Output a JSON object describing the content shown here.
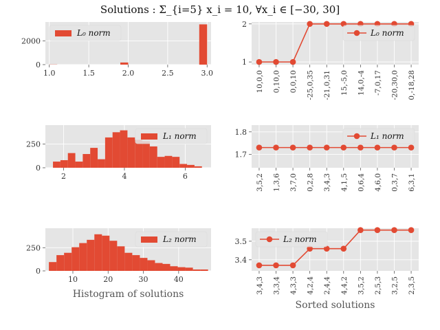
{
  "title": "Solutions : Σ_{i=5} x_i = 10,    ∀x_i ∈ [−30, 30]",
  "colors": {
    "accent": "#e24a33",
    "panel_bg": "#e5e5e5",
    "grid": "#ffffff"
  },
  "chart_data": [
    {
      "type": "bar",
      "subtype": "histogram",
      "legend": "L₀ norm",
      "legend_position": "top-left",
      "xlim": [
        0.95,
        3.05
      ],
      "ylim": [
        0,
        3600
      ],
      "xticks": [
        1.0,
        1.5,
        2.0,
        2.5,
        3.0
      ],
      "xtick_labels": [
        "1.0",
        "1.5",
        "2.0",
        "2.5",
        "3.0"
      ],
      "yticks": [
        0,
        2000
      ],
      "ytick_labels": [
        "0",
        "2000"
      ],
      "bins": [
        {
          "x0": 1.0,
          "x1": 1.1,
          "count": 15
        },
        {
          "x0": 1.9,
          "x1": 2.0,
          "count": 180
        },
        {
          "x0": 2.9,
          "x1": 3.0,
          "count": 3400
        }
      ]
    },
    {
      "type": "line",
      "legend": "L₀ norm",
      "legend_position": "top-right",
      "categories": [
        "10,0,0",
        "0,10,0",
        "0,0,10",
        "-25,0,35",
        "-21,0,31",
        "15,-5,0",
        "14,0,-4",
        "-7,0,17",
        "-20,30,0",
        "0,-18,28"
      ],
      "values": [
        1,
        1,
        1,
        2,
        2,
        2,
        2,
        2,
        2,
        2
      ],
      "ylim": [
        0.93,
        2.05
      ],
      "yticks": [
        1,
        2
      ],
      "ytick_labels": [
        "1",
        "2"
      ]
    },
    {
      "type": "bar",
      "subtype": "histogram",
      "legend": "L₁ norm",
      "legend_position": "top-right",
      "xlim": [
        1.4,
        6.85
      ],
      "ylim": [
        0,
        450
      ],
      "xticks": [
        2,
        4,
        6
      ],
      "xtick_labels": [
        "2",
        "4",
        "6"
      ],
      "yticks": [
        0,
        250
      ],
      "ytick_labels": [
        "0",
        "250"
      ],
      "bin_start": 1.65,
      "bin_width": 0.245,
      "counts": [
        65,
        80,
        155,
        65,
        145,
        210,
        90,
        320,
        375,
        395,
        320,
        295,
        280,
        225,
        115,
        125,
        115,
        40,
        30,
        15
      ]
    },
    {
      "type": "line",
      "legend": "L₁ norm",
      "legend_position": "top-right",
      "categories": [
        "3,5,2",
        "1,3,6",
        "3,7,0",
        "0,2,8",
        "3,4,3",
        "4,1,5",
        "0,6,4",
        "4,6,0",
        "0,3,7",
        "6,3,1"
      ],
      "values": [
        1.73,
        1.73,
        1.73,
        1.73,
        1.73,
        1.73,
        1.73,
        1.73,
        1.73,
        1.73
      ],
      "ylim": [
        1.64,
        1.83
      ],
      "yticks": [
        1.7,
        1.8
      ],
      "ytick_labels": [
        "1.7",
        "1.8"
      ]
    },
    {
      "type": "bar",
      "subtype": "histogram",
      "legend": "L₂ norm",
      "legend_position": "top-right",
      "xlim": [
        2.2,
        49.2
      ],
      "ylim": [
        0,
        460
      ],
      "xticks": [
        10,
        20,
        30,
        40
      ],
      "xtick_labels": [
        "10",
        "20",
        "30",
        "40"
      ],
      "yticks": [
        0,
        250
      ],
      "ytick_labels": [
        "0",
        "250"
      ],
      "xlabel": "Histogram of solutions",
      "bin_start": 3.2,
      "bin_width": 2.15,
      "counts": [
        95,
        170,
        195,
        255,
        300,
        335,
        395,
        380,
        325,
        265,
        195,
        170,
        140,
        115,
        85,
        75,
        50,
        40,
        35,
        15,
        15
      ]
    },
    {
      "type": "line",
      "legend": "L₂ norm",
      "legend_position": "top-left",
      "categories": [
        "3,4,3",
        "3,3,4",
        "4,3,3",
        "4,2,4",
        "2,4,4",
        "4,4,2",
        "3,5,2",
        "2,5,3",
        "3,2,5",
        "2,3,5"
      ],
      "values": [
        3.37,
        3.37,
        3.37,
        3.46,
        3.46,
        3.46,
        3.56,
        3.56,
        3.56,
        3.56
      ],
      "ylim": [
        3.34,
        3.57
      ],
      "yticks": [
        3.4,
        3.5
      ],
      "ytick_labels": [
        "3.4",
        "3.5"
      ],
      "xlabel": "Sorted solutions"
    }
  ]
}
